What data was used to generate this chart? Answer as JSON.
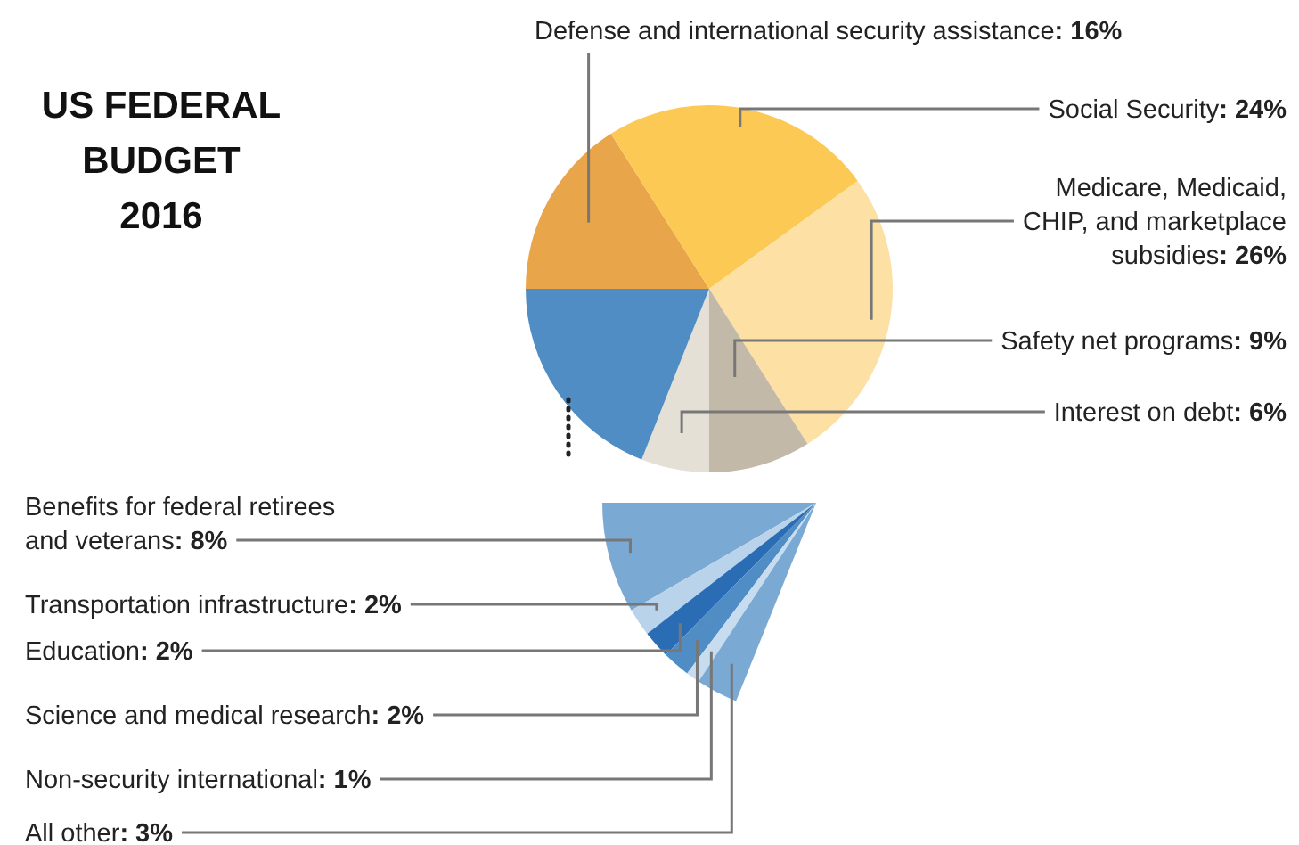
{
  "chart_data": [
    {
      "type": "pie",
      "title": "US FEDERAL BUDGET 2016",
      "categories": [
        "Defense and international security assistance",
        "Social Security",
        "Medicare, Medicaid, CHIP, and marketplace subsidies",
        "Safety net programs",
        "Interest on debt",
        null
      ],
      "values": [
        16,
        24,
        26,
        9,
        6,
        19
      ],
      "value_labels": [
        ": 16%",
        ": 24%",
        ": 26%",
        ": 9%",
        ": 6%",
        null
      ],
      "colors": [
        "#e8a54a",
        "#fcc955",
        "#fde0a3",
        "#c3b9a9",
        "#e4e0d6",
        "#4f8dc4"
      ]
    },
    {
      "type": "pie",
      "categories": [
        "Benefits for federal retirees and veterans",
        "Transportation infrastructure",
        "Education",
        "Science and medical research",
        "Non-security international",
        "All other"
      ],
      "values": [
        8,
        2,
        2,
        2,
        1,
        3
      ],
      "value_labels": [
        ": 8%",
        ": 2%",
        ": 2%",
        ": 2%",
        ": 1%",
        ": 3%"
      ],
      "colors": [
        "#7aa9d4",
        "#b9d3ea",
        "#2a6db5",
        "#4f8dc4",
        "#c8dcef",
        "#7aa9d4"
      ]
    }
  ]
}
